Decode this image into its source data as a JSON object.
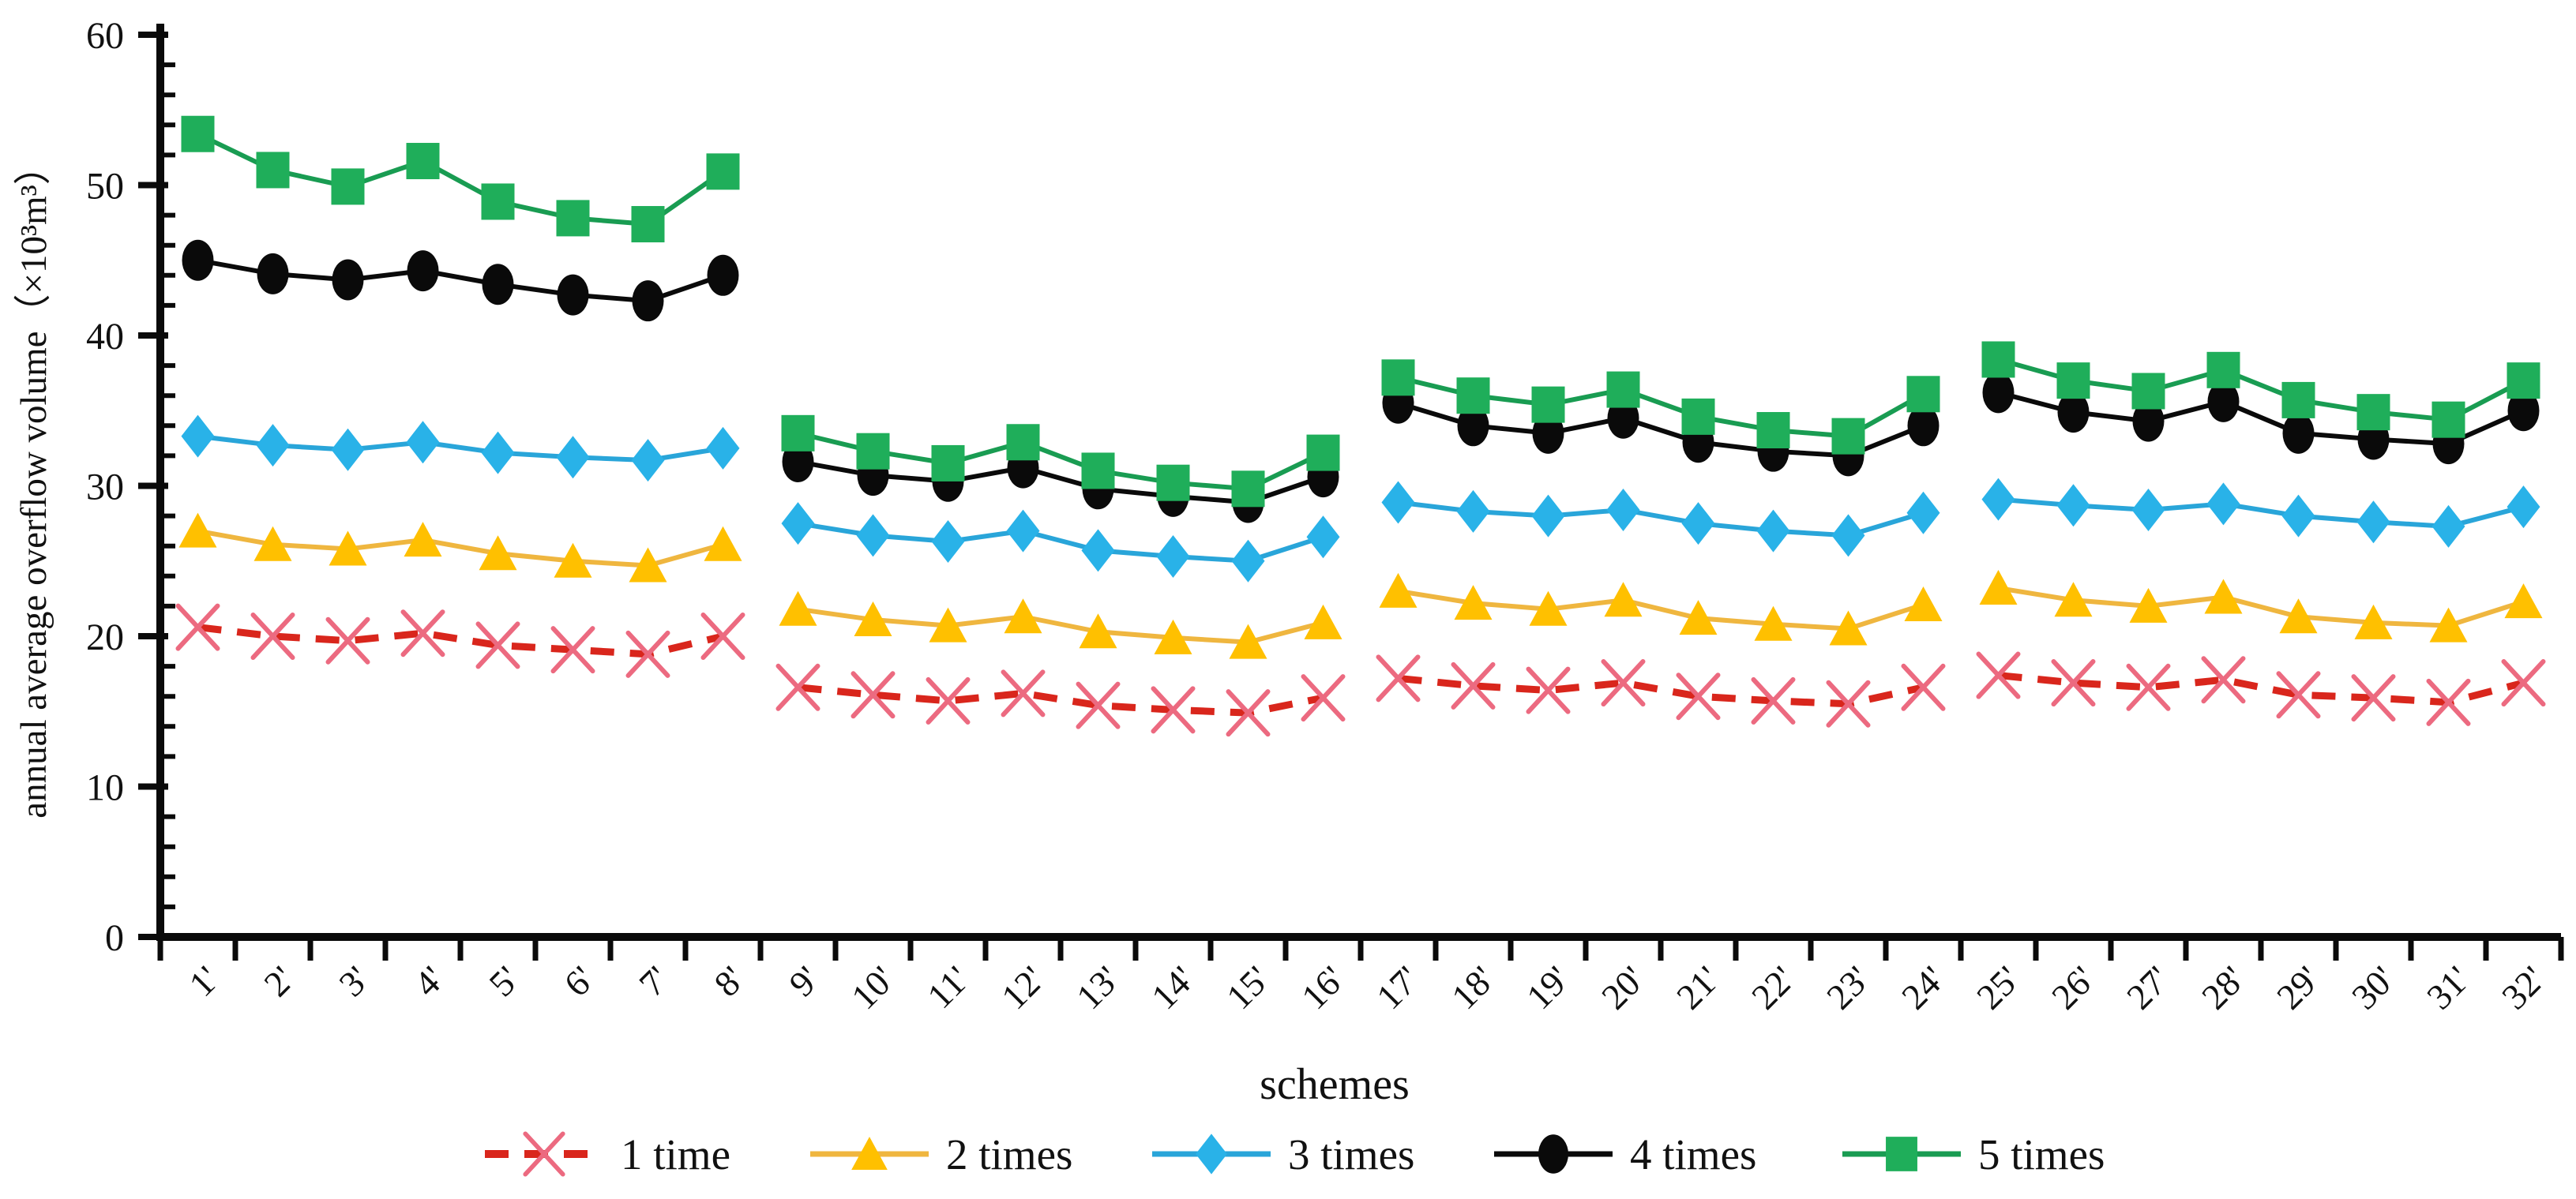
{
  "figure": {
    "background": "#ffffff",
    "text_color": "#111111",
    "y_axis": {
      "title": "annual average overflow volume（×10³m³）",
      "min": 0,
      "max": 60,
      "major_tick_interval": 10,
      "minor_tick_interval": 2,
      "tick_labels": [
        "0",
        "10",
        "20",
        "30",
        "40",
        "50",
        "60"
      ]
    },
    "x_axis": {
      "title": "schemes"
    },
    "legend": {
      "position": "bottom",
      "items": [
        "1 time",
        "2 times",
        "3 times",
        "4 times",
        "5 times"
      ]
    }
  },
  "chart_data": {
    "type": "line",
    "title": "",
    "xlabel": "schemes",
    "ylabel": "annual average overflow volume（×10³m³）",
    "ylim": [
      0,
      60
    ],
    "grid": false,
    "legend_position": "bottom",
    "segment_size": 8,
    "categories": [
      "1'",
      "2'",
      "3'",
      "4'",
      "5'",
      "6'",
      "7'",
      "8'",
      "9'",
      "10'",
      "11'",
      "12'",
      "13'",
      "14'",
      "15'",
      "16'",
      "17'",
      "18'",
      "19'",
      "20'",
      "21'",
      "22'",
      "23'",
      "24'",
      "25'",
      "26'",
      "27'",
      "28'",
      "29'",
      "30'",
      "31'",
      "32'"
    ],
    "series": [
      {
        "name": "1 time",
        "marker": "x",
        "line_style": "dashed",
        "line_color": "#d9261c",
        "marker_color": "#ec6a80",
        "values": [
          20.6,
          20.0,
          19.7,
          20.2,
          19.4,
          19.1,
          18.8,
          20.0,
          16.6,
          16.1,
          15.7,
          16.2,
          15.4,
          15.1,
          14.9,
          15.9,
          17.2,
          16.7,
          16.4,
          16.9,
          16.0,
          15.7,
          15.5,
          16.6,
          17.4,
          16.9,
          16.6,
          17.1,
          16.1,
          15.9,
          15.6,
          16.9
        ]
      },
      {
        "name": "2 times",
        "marker": "triangle",
        "line_style": "solid",
        "line_color": "#efb63f",
        "marker_color": "#ffc000",
        "values": [
          27.0,
          26.1,
          25.8,
          26.4,
          25.5,
          25.0,
          24.7,
          26.1,
          21.8,
          21.1,
          20.7,
          21.3,
          20.3,
          19.9,
          19.6,
          20.9,
          23.0,
          22.2,
          21.8,
          22.4,
          21.2,
          20.8,
          20.5,
          22.1,
          23.2,
          22.4,
          22.0,
          22.6,
          21.3,
          20.9,
          20.7,
          22.3
        ]
      },
      {
        "name": "3 times",
        "marker": "diamond",
        "line_style": "solid",
        "line_color": "#29a5d9",
        "marker_color": "#29b2e8",
        "values": [
          33.3,
          32.7,
          32.4,
          32.9,
          32.2,
          31.9,
          31.7,
          32.5,
          27.5,
          26.7,
          26.3,
          27.0,
          25.7,
          25.3,
          25.0,
          26.6,
          28.9,
          28.3,
          28.0,
          28.4,
          27.5,
          27.0,
          26.7,
          28.2,
          29.1,
          28.7,
          28.4,
          28.8,
          28.0,
          27.6,
          27.3,
          28.6
        ]
      },
      {
        "name": "4 times",
        "marker": "circle",
        "line_style": "solid",
        "line_color": "#0a0a0a",
        "marker_color": "#0a0a0a",
        "values": [
          45.0,
          44.1,
          43.7,
          44.3,
          43.4,
          42.7,
          42.3,
          44.0,
          31.6,
          30.7,
          30.3,
          31.2,
          29.8,
          29.3,
          28.9,
          30.6,
          35.5,
          34.0,
          33.5,
          34.5,
          32.9,
          32.3,
          32.0,
          34.0,
          36.2,
          34.9,
          34.3,
          35.6,
          33.5,
          33.1,
          32.8,
          35.0
        ]
      },
      {
        "name": "5 times",
        "marker": "square",
        "line_style": "solid",
        "line_color": "#199c52",
        "marker_color": "#1fae5a",
        "values": [
          53.4,
          51.0,
          49.9,
          51.6,
          48.9,
          47.8,
          47.4,
          50.9,
          33.5,
          32.3,
          31.5,
          32.9,
          31.0,
          30.2,
          29.8,
          32.2,
          37.2,
          36.0,
          35.4,
          36.4,
          34.6,
          33.7,
          33.3,
          36.1,
          38.4,
          37.0,
          36.3,
          37.7,
          35.7,
          34.9,
          34.4,
          37.0
        ]
      }
    ]
  }
}
